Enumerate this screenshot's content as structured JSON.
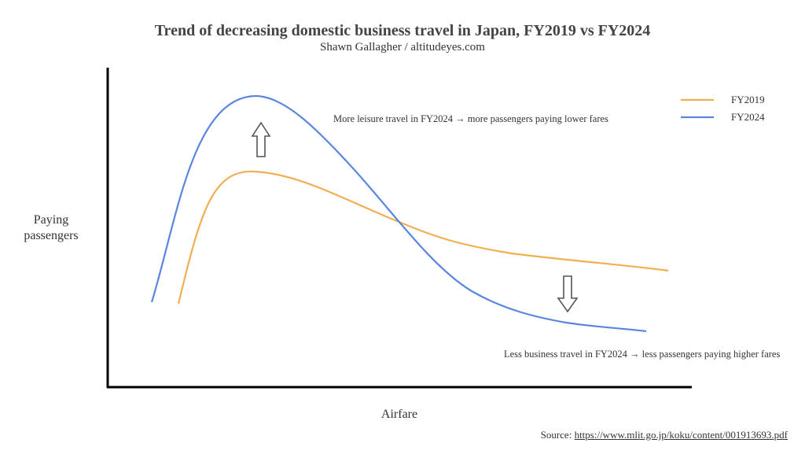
{
  "chart_data": {
    "type": "line",
    "title": "Trend of decreasing domestic business travel in Japan, FY2019 vs FY2024",
    "subtitle": "Shawn Gallagher / altitudeyes.com",
    "xlabel": "Airfare",
    "ylabel_lines": [
      "Paying",
      "passengers"
    ],
    "grid": false,
    "legend_position": "top-right",
    "series": [
      {
        "name": "FY2019",
        "color": "#F2AE52"
      },
      {
        "name": "FY2024",
        "color": "#5B86DF"
      }
    ],
    "annotations": {
      "up": "More leisure travel in FY2024 → more passengers paying lower fares",
      "down": "Less business travel in FY2024 → less passengers paying higher fares"
    },
    "source_prefix": "Source: ",
    "source_link": "https://www.mlit.go.jp/koku/content/001913693.pdf"
  }
}
